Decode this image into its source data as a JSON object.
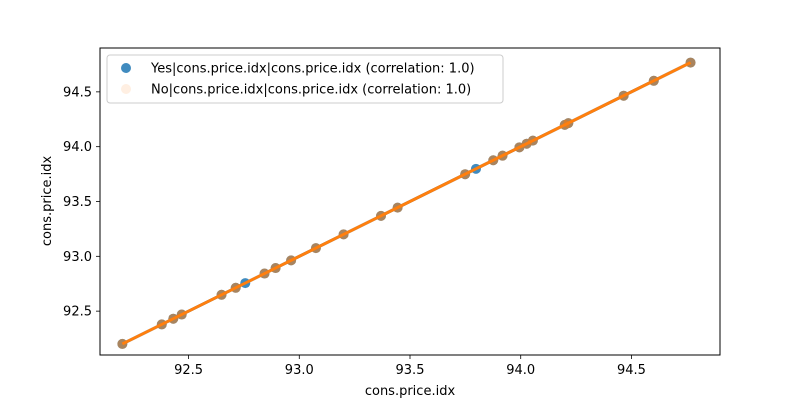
{
  "chart_data": {
    "type": "scatter",
    "xlabel": "cons.price.idx",
    "ylabel": "cons.price.idx",
    "xlim": [
      92.1,
      94.9
    ],
    "ylim": [
      92.1,
      94.9
    ],
    "xticks": [
      92.5,
      93.0,
      93.5,
      94.0,
      94.5
    ],
    "yticks": [
      92.5,
      93.0,
      93.5,
      94.0,
      94.5
    ],
    "tick_labels": [
      "92.5",
      "93.0",
      "93.5",
      "94.0",
      "94.5"
    ],
    "legend_position": "upper-left",
    "grid": false,
    "series": [
      {
        "name": "Yes|cons.price.idx|cons.price.idx (correlation: 1.0)",
        "color": "#1f77b4",
        "x": [
          92.201,
          92.379,
          92.431,
          92.469,
          92.649,
          92.713,
          92.756,
          92.843,
          92.893,
          92.963,
          93.075,
          93.2,
          93.369,
          93.444,
          93.749,
          93.798,
          93.876,
          93.918,
          93.994,
          94.027,
          94.055,
          94.199,
          94.215,
          94.465,
          94.601,
          94.767
        ],
        "y": [
          92.201,
          92.379,
          92.431,
          92.469,
          92.649,
          92.713,
          92.756,
          92.843,
          92.893,
          92.963,
          93.075,
          93.2,
          93.369,
          93.444,
          93.749,
          93.798,
          93.876,
          93.918,
          93.994,
          94.027,
          94.055,
          94.199,
          94.215,
          94.465,
          94.601,
          94.767
        ]
      },
      {
        "name": "No|cons.price.idx|cons.price.idx (correlation: 1.0)",
        "color": "#ff7f0e",
        "x": [
          92.201,
          92.379,
          92.431,
          92.469,
          92.649,
          92.713,
          92.843,
          92.893,
          92.963,
          93.075,
          93.2,
          93.369,
          93.444,
          93.749,
          93.876,
          93.918,
          93.994,
          94.027,
          94.055,
          94.199,
          94.215,
          94.465,
          94.601,
          94.767
        ],
        "y": [
          92.201,
          92.379,
          92.431,
          92.469,
          92.649,
          92.713,
          92.843,
          92.893,
          92.963,
          93.075,
          93.2,
          93.369,
          93.444,
          93.749,
          93.876,
          93.918,
          93.994,
          94.027,
          94.055,
          94.199,
          94.215,
          94.465,
          94.601,
          94.767
        ]
      }
    ]
  }
}
